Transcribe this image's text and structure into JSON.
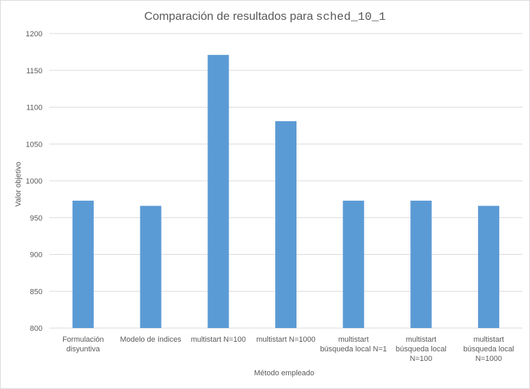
{
  "chart_data": {
    "type": "bar",
    "title": "Comparación de resultados para",
    "title_code": "sched_10_1",
    "xlabel": "Método empleado",
    "ylabel": "Valor objetivo",
    "ylim": [
      800,
      1200
    ],
    "yticks": [
      800,
      850,
      900,
      950,
      1000,
      1050,
      1100,
      1150,
      1200
    ],
    "grid": true,
    "legend": "none",
    "bar_color": "#5b9bd5",
    "categories": [
      [
        "Formulación",
        "disyuntiva"
      ],
      [
        "Modelo de índices"
      ],
      [
        "multistart N=100"
      ],
      [
        "multistart N=1000"
      ],
      [
        "multistart",
        "búsqueda local N=1"
      ],
      [
        "multistart",
        "búsqueda local",
        "N=100"
      ],
      [
        "multistart",
        "búsqueda local",
        "N=1000"
      ]
    ],
    "values": [
      973,
      966,
      1171,
      1081,
      973,
      973,
      966
    ]
  }
}
